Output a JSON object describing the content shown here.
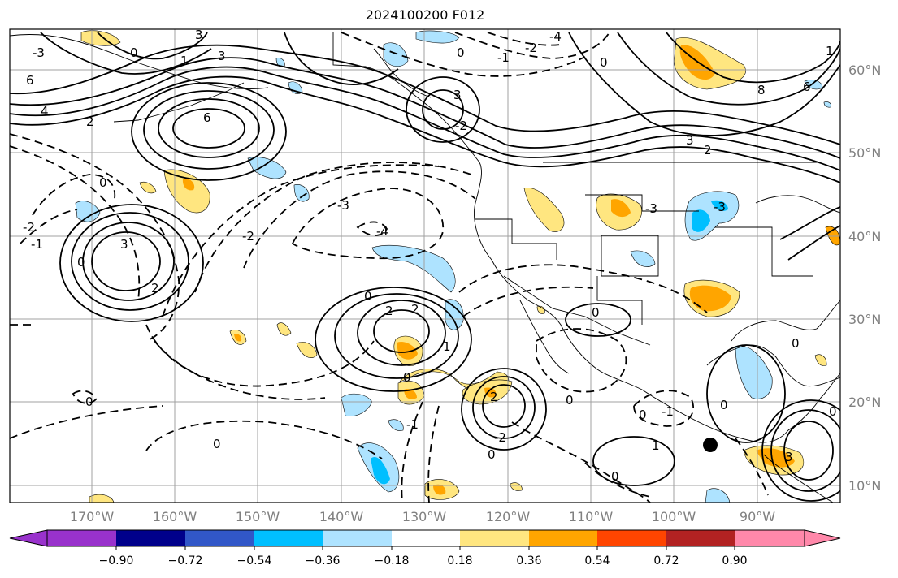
{
  "title": "2024100200 F012",
  "axes": {
    "lon_labels": [
      "170°W",
      "160°W",
      "150°W",
      "140°W",
      "130°W",
      "120°W",
      "110°W",
      "100°W",
      "90°W"
    ],
    "lat_labels": [
      "60°N",
      "50°N",
      "40°N",
      "30°N",
      "20°N",
      "10°N"
    ]
  },
  "colorbar": {
    "tick_labels": [
      "−0.90",
      "−0.72",
      "−0.54",
      "−0.36",
      "−0.18",
      "0.18",
      "0.36",
      "0.54",
      "0.72",
      "0.90"
    ],
    "colors": [
      "#9932cc",
      "#00008b",
      "#3157c8",
      "#00bfff",
      "#aee3ff",
      "#ffffff",
      "#ffe680",
      "#ffa500",
      "#ff4500",
      "#b22222",
      "#ff88aa"
    ]
  },
  "contour_labels": [
    "-3",
    "-2",
    "0",
    "1",
    "2",
    "6",
    "6",
    "8",
    "4",
    "2",
    "3",
    "2",
    "-4",
    "-3",
    "-3",
    "-3",
    "-2",
    "-1",
    "0",
    "3",
    "2",
    "0",
    "2",
    "-2",
    "2",
    "0",
    "-1",
    "0",
    "-1",
    "1",
    "0",
    "-1",
    "0",
    "-2",
    "-1",
    "0",
    "3",
    "-2",
    "-1"
  ],
  "shading_colors": {
    "pos_light": "#ffe680",
    "pos_mid": "#ffa500",
    "neg_light": "#aee3ff",
    "neg_mid": "#00bfff"
  },
  "marker": {
    "type": "black dot"
  }
}
